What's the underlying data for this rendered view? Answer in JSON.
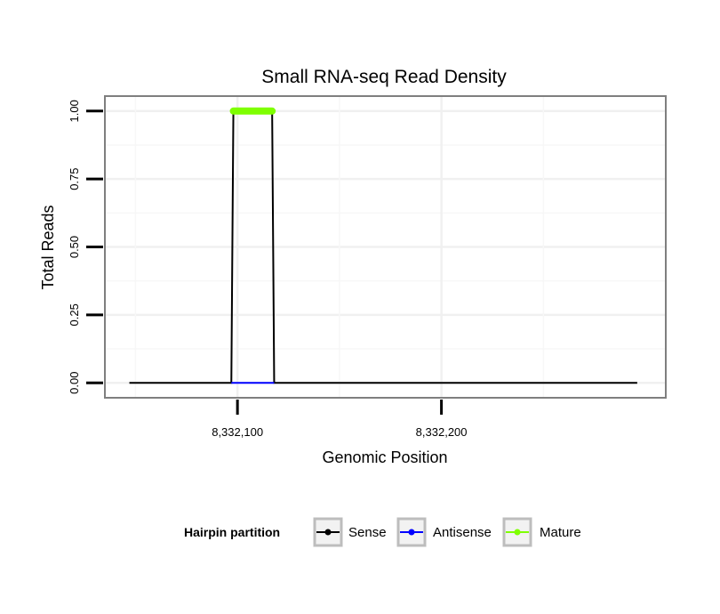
{
  "chart_data": {
    "type": "line",
    "title": "Small RNA-seq Read Density",
    "xlabel": "Genomic Position",
    "ylabel": "Total Reads",
    "xlim": [
      8332035,
      8332310
    ],
    "ylim": [
      -0.055,
      1.055
    ],
    "x_ticks": [
      8332100,
      8332200
    ],
    "x_tick_labels": [
      "8,332,100",
      "8,332,200"
    ],
    "y_ticks": [
      0,
      0.25,
      0.5,
      0.75,
      1.0
    ],
    "y_tick_labels": [
      "0.00",
      "0.25",
      "0.50",
      "0.75",
      "1.00"
    ],
    "grid": true,
    "legend_position": "bottom",
    "legend_title": "Hairpin partition",
    "series": [
      {
        "name": "Sense",
        "color": "#000000",
        "x": [
          8332047,
          8332097,
          8332098,
          8332117,
          8332118,
          8332296
        ],
        "y": [
          0,
          0,
          1,
          1,
          0,
          0
        ]
      },
      {
        "name": "Antisense",
        "color": "#0000ff",
        "x": [
          8332097,
          8332118
        ],
        "y": [
          0,
          0
        ]
      },
      {
        "name": "Mature",
        "color": "#7fff00",
        "x": [
          8332098,
          8332117
        ],
        "y": [
          1,
          1
        ]
      }
    ]
  }
}
